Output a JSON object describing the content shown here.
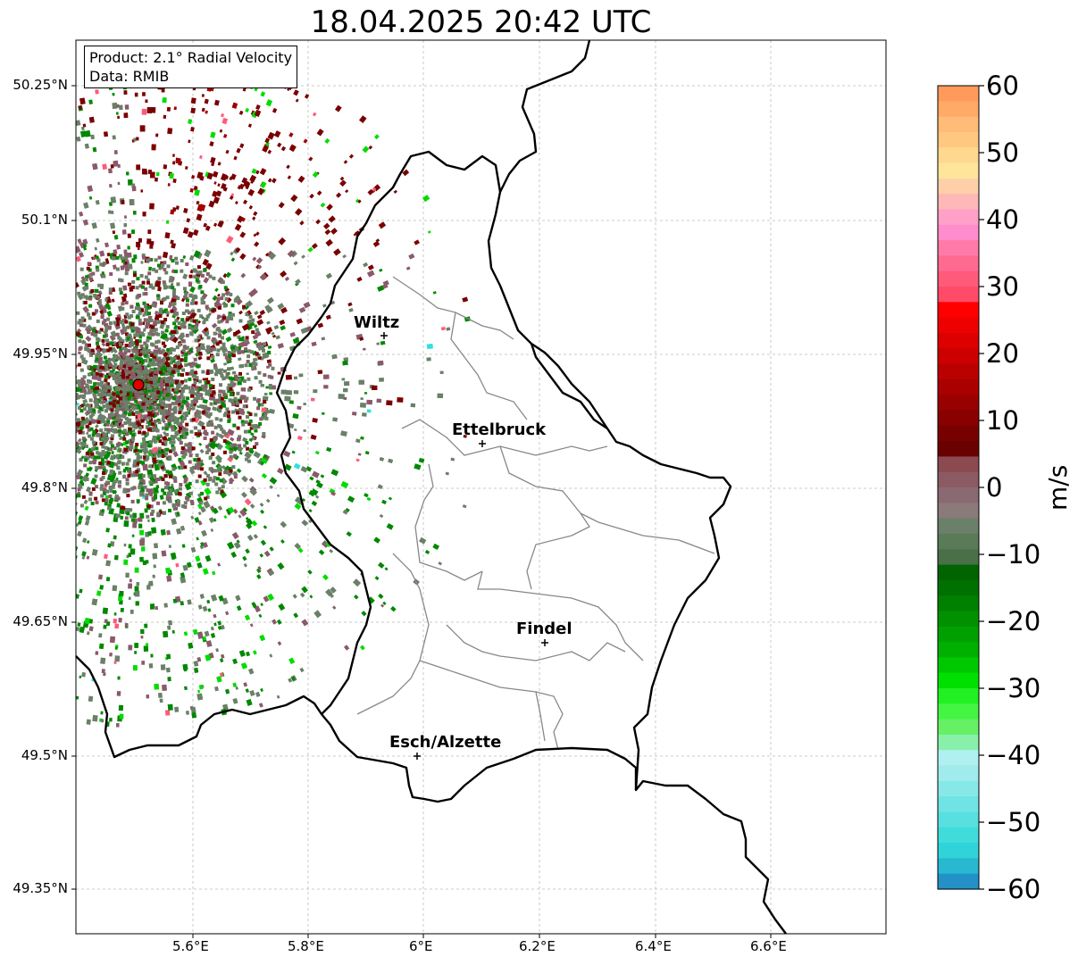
{
  "title": "18.04.2025 20:42 UTC",
  "info": {
    "product": "Product: 2.1° Radial Velocity",
    "data": "Data: RMIB"
  },
  "axes": {
    "lat_ticks": [
      "50.25°N",
      "50.1°N",
      "49.95°N",
      "49.8°N",
      "49.65°N",
      "49.5°N",
      "49.35°N"
    ],
    "lon_ticks": [
      "5.6°E",
      "5.8°E",
      "6°E",
      "6.2°E",
      "6.4°E",
      "6.6°E"
    ]
  },
  "cities": [
    {
      "name": "Wiltz"
    },
    {
      "name": "Ettelbruck"
    },
    {
      "name": "Findel"
    },
    {
      "name": "Esch/Alzette"
    }
  ],
  "colorbar": {
    "unit": "m/s",
    "ticks": [
      "60",
      "50",
      "40",
      "30",
      "20",
      "10",
      "0",
      "−10",
      "−20",
      "−30",
      "−40",
      "−50",
      "−60"
    ],
    "range": [
      -60,
      60
    ]
  },
  "radar": {
    "site_marker": "red-circle",
    "colors": {
      "dark_red": "#7a0000",
      "mid_red": "#a00000",
      "mauve": "#8a5a6a",
      "gray_green": "#6a8068",
      "green": "#008800",
      "bright_green": "#00dd00",
      "pink": "#ff5a7a",
      "cyan": "#30e0e0"
    }
  }
}
